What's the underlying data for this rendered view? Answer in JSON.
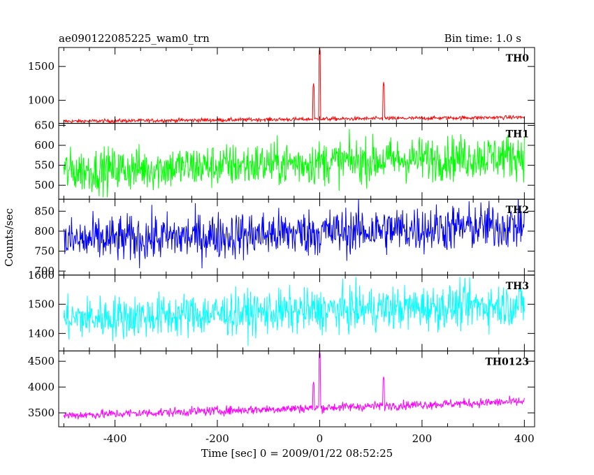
{
  "chart_data": {
    "type": "line",
    "title_left": "ae090122085225_wam0_trn",
    "title_right": "Bin time: 1.0 s",
    "xlabel": "Time [sec] 0 = 2009/01/22 08:52:25",
    "ylabel": "Counts/sec",
    "xlim": [
      -510,
      420
    ],
    "x_ticks": [
      -400,
      -200,
      0,
      200,
      400
    ],
    "x_data_range": [
      -500,
      400
    ],
    "bin_time_s": 1.0,
    "panels": [
      {
        "label": "TH0",
        "color": "#ff0000",
        "ylim": [
          660,
          1780
        ],
        "y_ticks": [
          1000,
          1500
        ],
        "baseline_start": 690,
        "baseline_end": 750,
        "noise": 14,
        "spikes": [
          {
            "x": -12,
            "value": 1250
          },
          {
            "x": 0,
            "value": 1780
          },
          {
            "x": 125,
            "value": 1270
          }
        ]
      },
      {
        "label": "TH1",
        "color": "#00ff00",
        "ylim": [
          465,
          655
        ],
        "y_ticks": [
          500,
          550,
          600,
          650
        ],
        "baseline_start": 535,
        "baseline_end": 575,
        "noise": 28,
        "spikes": []
      },
      {
        "label": "TH2",
        "color": "#0000ff",
        "ylim": [
          690,
          880
        ],
        "y_ticks": [
          700,
          750,
          800,
          850
        ],
        "baseline_start": 775,
        "baseline_end": 815,
        "noise": 30,
        "spikes": []
      },
      {
        "label": "TH3",
        "color": "#00ffff",
        "ylim": [
          1340,
          1600
        ],
        "y_ticks": [
          1400,
          1500,
          1600
        ],
        "baseline_start": 1450,
        "baseline_end": 1500,
        "noise": 38,
        "spikes": []
      },
      {
        "label": "TH0123",
        "color": "#ff00ff",
        "ylim": [
          3230,
          4700
        ],
        "y_ticks": [
          3500,
          4000,
          4500
        ],
        "baseline_start": 3450,
        "baseline_end": 3720,
        "noise": 45,
        "spikes": [
          {
            "x": -12,
            "value": 4100
          },
          {
            "x": 0,
            "value": 4700
          },
          {
            "x": 125,
            "value": 4200
          }
        ]
      }
    ]
  }
}
